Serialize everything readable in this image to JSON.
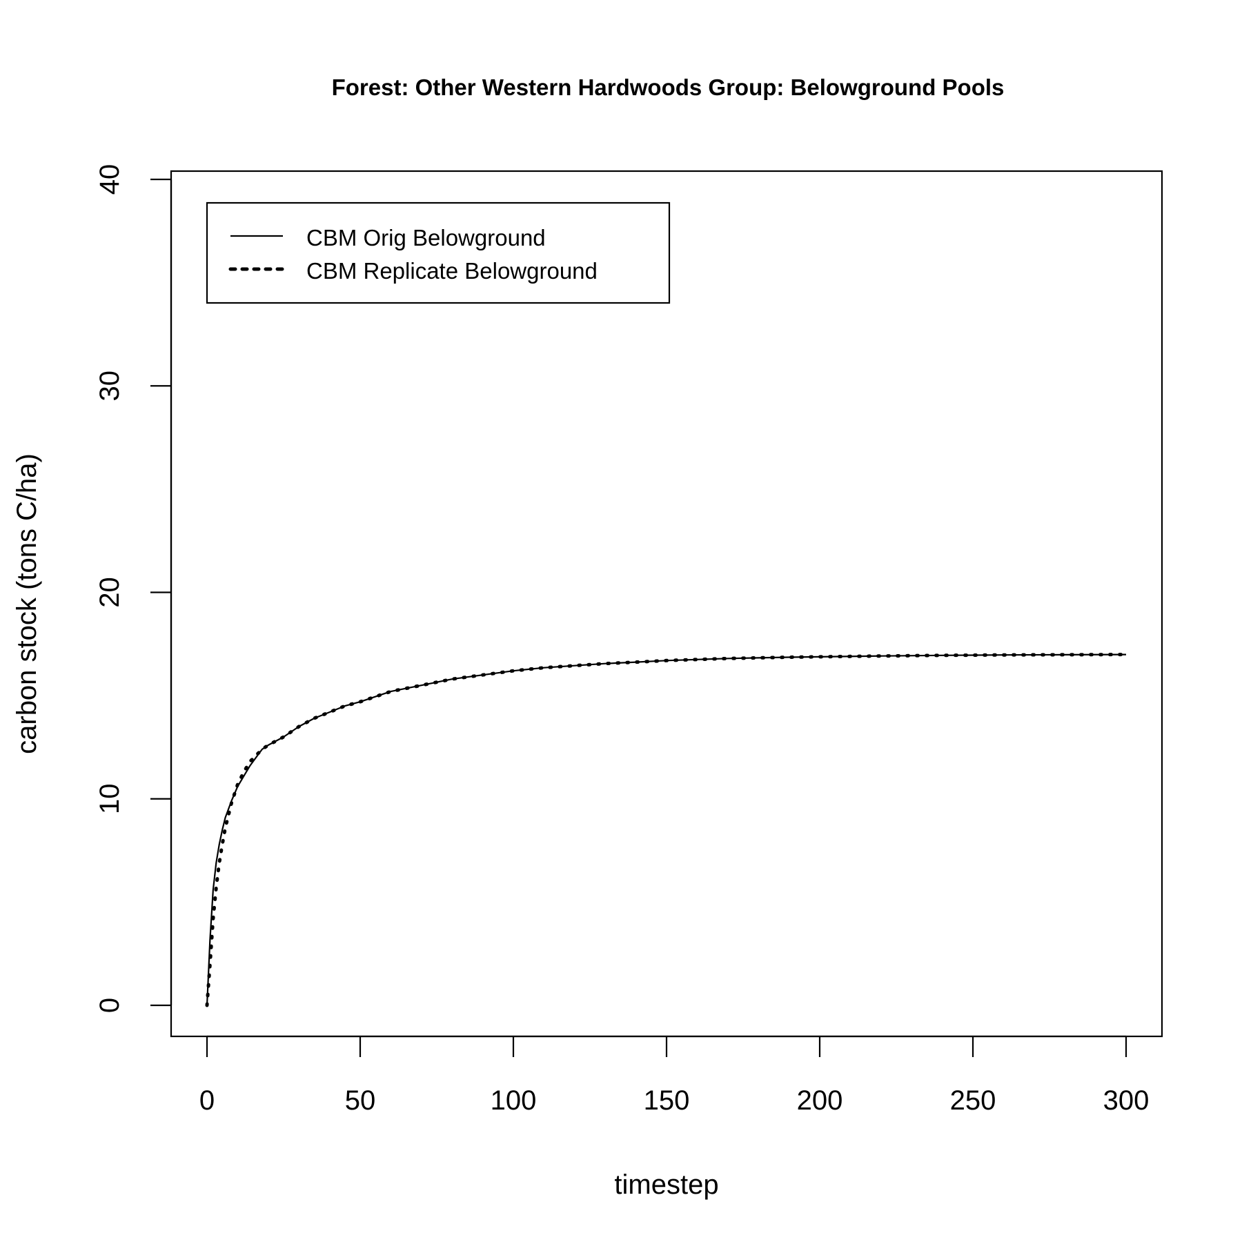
{
  "chart_data": {
    "type": "line",
    "title": "Forest: Other Western Hardwoods Group: Belowground Pools",
    "xlabel": "timestep",
    "ylabel": "carbon stock (tons C/ha)",
    "xlim": [
      0,
      300
    ],
    "ylim": [
      0,
      40
    ],
    "xticks": [
      "0",
      "50",
      "100",
      "150",
      "200",
      "250",
      "300"
    ],
    "yticks": [
      "0",
      "10",
      "20",
      "30",
      "40"
    ],
    "grid": false,
    "legend_position": "top-left",
    "series": [
      {
        "name": "CBM Orig Belowground",
        "line_style": "solid",
        "color": "#000000",
        "x": [
          0,
          1,
          2,
          3,
          4,
          5,
          6,
          8,
          10,
          12,
          14,
          16,
          18,
          20,
          25,
          30,
          35,
          40,
          45,
          50,
          60,
          70,
          80,
          90,
          100,
          110,
          120,
          130,
          140,
          150,
          160,
          170,
          180,
          190,
          200,
          220,
          240,
          260,
          280,
          300
        ],
        "values": [
          0,
          3.2,
          5.6,
          6.9,
          7.8,
          8.5,
          9.1,
          9.9,
          10.6,
          11.1,
          11.6,
          12.0,
          12.4,
          12.6,
          13.0,
          13.5,
          13.9,
          14.2,
          14.5,
          14.7,
          15.2,
          15.5,
          15.8,
          16.0,
          16.2,
          16.35,
          16.45,
          16.55,
          16.62,
          16.7,
          16.75,
          16.8,
          16.83,
          16.86,
          16.88,
          16.92,
          16.95,
          16.97,
          16.98,
          16.99
        ]
      },
      {
        "name": "CBM Replicate Belowground",
        "line_style": "dotted",
        "color": "#000000",
        "x": [
          0,
          1,
          2,
          3,
          4,
          5,
          6,
          8,
          10,
          12,
          14,
          16,
          18,
          20,
          25,
          30,
          35,
          40,
          45,
          50,
          60,
          70,
          80,
          90,
          100,
          110,
          120,
          130,
          140,
          150,
          160,
          170,
          180,
          190,
          200,
          220,
          240,
          260,
          280,
          300
        ],
        "values": [
          0,
          2.0,
          4.2,
          5.7,
          6.9,
          7.8,
          8.6,
          9.8,
          10.7,
          11.3,
          11.8,
          12.1,
          12.4,
          12.6,
          13.0,
          13.5,
          13.9,
          14.2,
          14.5,
          14.7,
          15.2,
          15.5,
          15.8,
          16.0,
          16.2,
          16.35,
          16.45,
          16.55,
          16.62,
          16.7,
          16.75,
          16.8,
          16.83,
          16.86,
          16.88,
          16.92,
          16.95,
          16.97,
          16.98,
          16.99
        ]
      }
    ]
  }
}
